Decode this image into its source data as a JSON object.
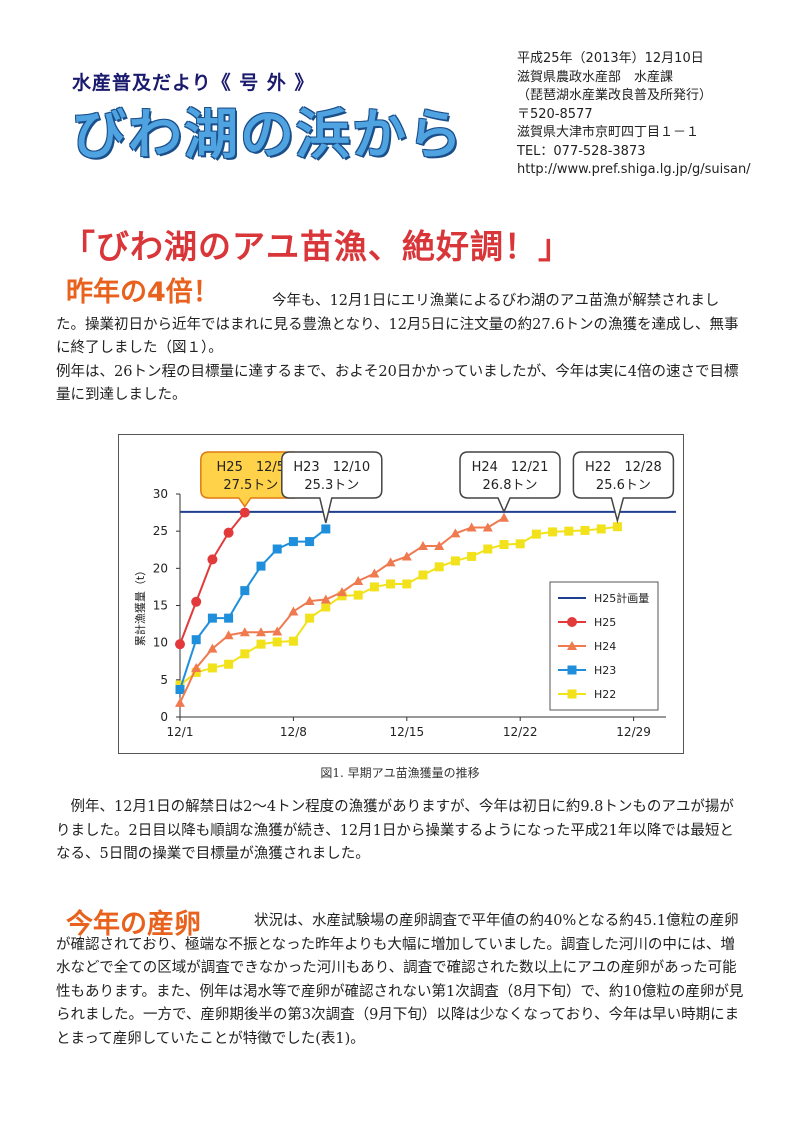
{
  "masthead": {
    "series_title": "水産普及だより《 号 外 》",
    "main_title": "びわ湖の浜から",
    "publisher_lines": [
      "平成25年（2013年）12月10日",
      "滋賀県農政水産部　水産課",
      "（琵琶湖水産業改良普及所発行）",
      "〒520-8577",
      "滋賀県大津市京町四丁目１－１",
      "TEL：077-528-3873",
      "http://www.pref.shiga.lg.jp/g/suisan/"
    ]
  },
  "headline": "「びわ湖のアユ苗漁、絶好調！」",
  "section1": {
    "heading": "昨年の4倍！",
    "first_line": "今年も、12月1日にエリ漁業によるびわ湖のアユ苗漁が解禁され",
    "rest": "ました。操業初日から近年ではまれに見る豊漁となり、12月5日に注文量の約27.6トンの漁獲を達成し、無事に終了しました（図１）。",
    "para2": "例年は、26トン程の目標量に達するまで、およそ20日かかっていましたが、今年は実に4倍の速さで目標量に到達しました。"
  },
  "figure": {
    "caption": "図1.  早期アユ苗漁獲量の推移"
  },
  "section2": {
    "para": "例年、12月1日の解禁日は2～4トン程度の漁獲がありますが、今年は初日に約9.8トンものアユが揚がりました。2日目以降も順調な漁獲が続き、12月1日から操業するようになった平成21年以降では最短となる、5日間の操業で目標量が漁獲されました。"
  },
  "section3": {
    "heading": "今年の産卵",
    "first_line": "状況は、水産試験場の産卵調査で平年値の約40%となる約45.1億粒",
    "rest": "の産卵が確認されており、極端な不振となった昨年よりも大幅に増加していました。調査した河川の中には、増水などで全ての区域が調査できなかった河川もあり、調査で確認された数以上にアユの産卵があった可能性もあります。また、例年は渇水等で産卵が確認されない第1次調査（8月下旬）で、約10億粒の産卵が見られました。一方で、産卵期後半の第3次調査（9月下旬）以降は少なくなっており、今年は早い時期にまとまって産卵していたことが特徴でした(表1)。"
  },
  "chart_data": {
    "type": "line",
    "ylabel": "累計漁獲量（t）",
    "xlabel": "",
    "x_ticks": [
      "12/1",
      "12/8",
      "12/15",
      "12/22",
      "12/29"
    ],
    "x_tick_days": [
      1,
      8,
      15,
      22,
      29
    ],
    "xlim": [
      1,
      31
    ],
    "ylim": [
      0,
      30
    ],
    "y_ticks": [
      0,
      5,
      10,
      15,
      20,
      25,
      30
    ],
    "grid": false,
    "legend_position": "right",
    "plan": {
      "name": "H25計画量",
      "value": 27.6,
      "color": "#1f3f8f"
    },
    "series": [
      {
        "name": "H25",
        "color": "#e23a3a",
        "marker": "circle",
        "x": [
          1,
          2,
          3,
          4,
          5
        ],
        "y": [
          9.8,
          15.5,
          21.2,
          24.8,
          27.5
        ]
      },
      {
        "name": "H24",
        "color": "#f07a50",
        "marker": "triangle",
        "x": [
          1,
          2,
          3,
          4,
          5,
          6,
          7,
          8,
          9,
          10,
          11,
          12,
          13,
          14,
          15,
          16,
          17,
          18,
          19,
          20,
          21
        ],
        "y": [
          1.9,
          6.6,
          9.2,
          11.0,
          11.4,
          11.4,
          11.5,
          14.2,
          15.6,
          15.8,
          16.8,
          18.3,
          19.3,
          20.8,
          21.6,
          23.0,
          23.0,
          24.7,
          25.5,
          25.5,
          26.8
        ]
      },
      {
        "name": "H23",
        "color": "#1f8fdc",
        "marker": "square",
        "x": [
          1,
          2,
          3,
          4,
          5,
          6,
          7,
          8,
          9,
          10
        ],
        "y": [
          3.7,
          10.4,
          13.3,
          13.3,
          17.0,
          20.3,
          22.6,
          23.6,
          23.6,
          25.3
        ]
      },
      {
        "name": "H22",
        "color": "#f2e21c",
        "marker": "square",
        "x": [
          1,
          2,
          3,
          4,
          5,
          6,
          7,
          8,
          9,
          10,
          11,
          12,
          13,
          14,
          15,
          16,
          17,
          18,
          19,
          20,
          21,
          22,
          23,
          24,
          25,
          26,
          27,
          28
        ],
        "y": [
          4.3,
          6.0,
          6.6,
          7.1,
          8.5,
          9.8,
          10.1,
          10.2,
          13.3,
          14.8,
          16.3,
          16.4,
          17.5,
          17.9,
          17.9,
          19.1,
          20.2,
          21.0,
          21.6,
          22.6,
          23.2,
          23.3,
          24.6,
          24.9,
          25.0,
          25.1,
          25.3,
          25.6
        ]
      }
    ],
    "callouts": [
      {
        "series": "H25",
        "line1": "H25　12/5",
        "line2": "27.5トン",
        "fill": "#ffd24a",
        "stroke": "#e07a10"
      },
      {
        "series": "H23",
        "line1": "H23　12/10",
        "line2": "25.3トン",
        "fill": "#ffffff",
        "stroke": "#444444"
      },
      {
        "series": "H24",
        "line1": "H24　12/21",
        "line2": "26.8トン",
        "fill": "#ffffff",
        "stroke": "#444444"
      },
      {
        "series": "H22",
        "line1": "H22　12/28",
        "line2": "25.6トン",
        "fill": "#ffffff",
        "stroke": "#444444"
      }
    ]
  }
}
